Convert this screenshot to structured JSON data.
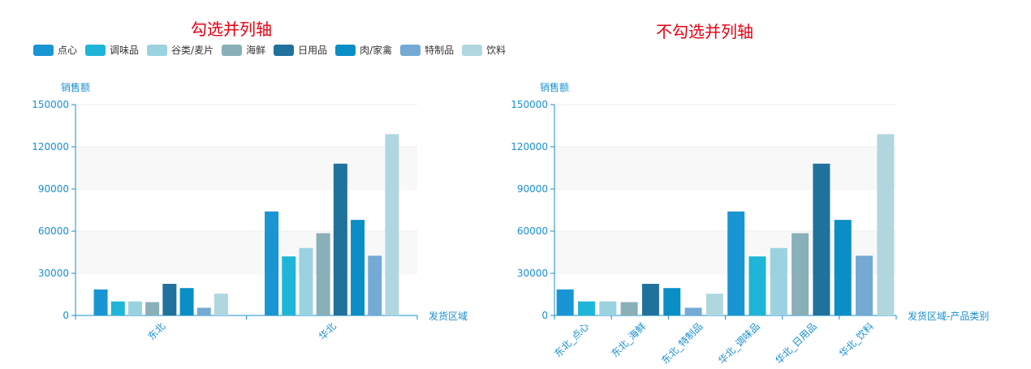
{
  "titles": {
    "left": "勾选并列轴",
    "right": "不勾选并列轴"
  },
  "legend": [
    {
      "label": "点心",
      "color": "#1a95d3"
    },
    {
      "label": "调味品",
      "color": "#1fb5d8"
    },
    {
      "label": "谷类/麦片",
      "color": "#9bd2e0"
    },
    {
      "label": "海鲜",
      "color": "#89afb8"
    },
    {
      "label": "日用品",
      "color": "#20729c"
    },
    {
      "label": "肉/家禽",
      "color": "#0a8ec6"
    },
    {
      "label": "特制品",
      "color": "#74aad4"
    },
    {
      "label": "饮料",
      "color": "#b0d7e0"
    }
  ],
  "chart_data": [
    {
      "type": "bar",
      "title": "勾选并列轴",
      "ylabel": "销售额",
      "xlabel": "发货区域",
      "ylim": [
        0,
        150000
      ],
      "yticks": [
        "0",
        "30000",
        "60000",
        "90000",
        "120000",
        "150000"
      ],
      "categories": [
        "东北",
        "华北"
      ],
      "series": [
        {
          "name": "点心",
          "values": [
            18500,
            74000
          ]
        },
        {
          "name": "调味品",
          "values": [
            10000,
            42000
          ]
        },
        {
          "name": "谷类/麦片",
          "values": [
            10000,
            48000
          ]
        },
        {
          "name": "海鲜",
          "values": [
            9500,
            58500
          ]
        },
        {
          "name": "日用品",
          "values": [
            22500,
            108000
          ]
        },
        {
          "name": "肉/家禽",
          "values": [
            19500,
            68000
          ]
        },
        {
          "name": "特制品",
          "values": [
            5500,
            42500
          ]
        },
        {
          "name": "饮料",
          "values": [
            15500,
            129000
          ]
        }
      ]
    },
    {
      "type": "bar",
      "title": "不勾选并列轴",
      "ylabel": "销售额",
      "xlabel": "发货区域-产品类别",
      "ylim": [
        0,
        150000
      ],
      "yticks": [
        "0",
        "30000",
        "60000",
        "90000",
        "120000",
        "150000"
      ],
      "tick_labels": [
        "东北_点心",
        "东北_海鲜",
        "东北_特制品",
        "华北_调味品",
        "华北_日用品",
        "华北_饮料"
      ],
      "series": [
        {
          "name": "点心",
          "values": [
            18500,
            74000
          ]
        },
        {
          "name": "调味品",
          "values": [
            10000,
            42000
          ]
        },
        {
          "name": "谷类/麦片",
          "values": [
            10000,
            48000
          ]
        },
        {
          "name": "海鲜",
          "values": [
            9500,
            58500
          ]
        },
        {
          "name": "日用品",
          "values": [
            22500,
            108000
          ]
        },
        {
          "name": "肉/家禽",
          "values": [
            19500,
            68000
          ]
        },
        {
          "name": "特制品",
          "values": [
            5500,
            42500
          ]
        },
        {
          "name": "饮料",
          "values": [
            15500,
            129000
          ]
        }
      ]
    }
  ]
}
